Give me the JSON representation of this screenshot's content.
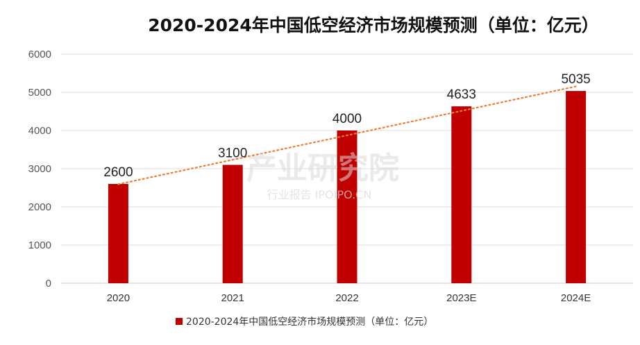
{
  "chart_data": {
    "type": "bar",
    "title": "2020-2024年中国低空经济市场规模预测（单位：亿元）",
    "categories": [
      "2020",
      "2021",
      "2022",
      "2023E",
      "2024E"
    ],
    "series": [
      {
        "name": "2020-2024年中国低空经济市场规模预测（单位：亿元）",
        "values": [
          2600,
          3100,
          4000,
          4633,
          5035
        ],
        "color": "#c00000"
      }
    ],
    "data_labels": [
      "2600",
      "3100",
      "4000",
      "4633",
      "5035"
    ],
    "yticks": [
      "0",
      "1000",
      "2000",
      "3000",
      "4000",
      "5000",
      "6000"
    ],
    "ylim": [
      0,
      6000
    ],
    "trendline": {
      "type": "linear",
      "color": "#ed7d31",
      "style": "dotted"
    },
    "grid": true,
    "legend_position": "bottom"
  },
  "watermark": {
    "main": "产业研究院",
    "sub": "行业报告 IPOIPO.CN"
  }
}
